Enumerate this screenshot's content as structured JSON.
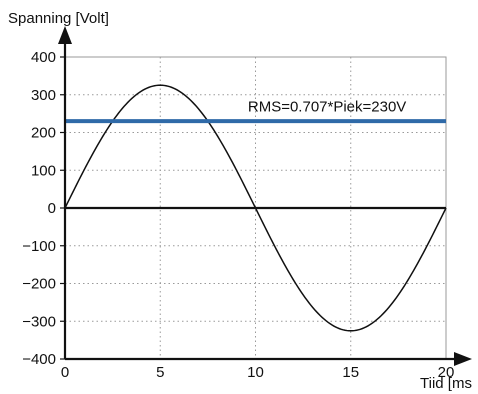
{
  "chart_data": {
    "type": "line",
    "title": "",
    "ylabel": "Spanning [Volt]",
    "xlabel": "Tiid [ms",
    "xlim": [
      0,
      20
    ],
    "ylim": [
      -400,
      400
    ],
    "x_ticks": [
      0,
      5,
      10,
      15,
      20
    ],
    "x_tick_labels": [
      "0",
      "5",
      "10",
      "15",
      "20"
    ],
    "y_ticks": [
      -400,
      -300,
      -200,
      -100,
      0,
      100,
      200,
      300,
      400
    ],
    "y_tick_labels": [
      "−400",
      "−300",
      "−200",
      "−100",
      "0",
      "100",
      "200",
      "300",
      "400"
    ],
    "grid": true,
    "series": [
      {
        "role": "sine-voltage",
        "color": "#111111",
        "x": [
          0,
          1,
          2,
          3,
          4,
          5,
          6,
          7,
          8,
          9,
          10,
          11,
          12,
          13,
          14,
          15,
          16,
          17,
          18,
          19,
          20
        ],
        "y": [
          0,
          100.5,
          191.2,
          263.1,
          309.4,
          325.3,
          309.4,
          263.1,
          191.2,
          100.5,
          0,
          -100.5,
          -191.2,
          -263.1,
          -309.4,
          -325.3,
          -309.4,
          -263.1,
          -191.2,
          -100.5,
          0
        ]
      },
      {
        "name": "RMS=0.707*Piek=230V",
        "role": "rms-line",
        "color": "#2f6aa8",
        "x": [
          0,
          20
        ],
        "y": [
          230,
          230
        ]
      },
      {
        "role": "zero-line",
        "color": "#111111",
        "x": [
          0,
          20
        ],
        "y": [
          0,
          0
        ]
      }
    ],
    "annotations": [
      {
        "text": "RMS=0.707*Piek=230V",
        "x": 9.6,
        "y": 255
      }
    ]
  }
}
